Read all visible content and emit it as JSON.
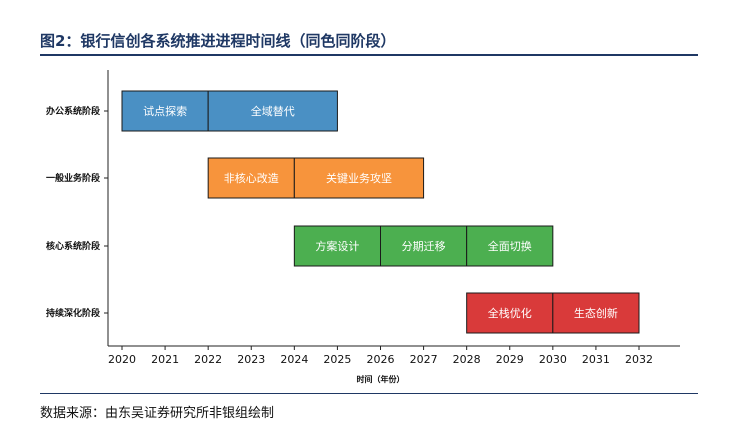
{
  "header": {
    "title": "图2：银行信创各系统推进进程时间线（同色同阶段）"
  },
  "footer": {
    "source": "数据来源：由东吴证券研究所非银组绘制"
  },
  "chart_data": {
    "type": "bar",
    "orientation": "horizontal-gantt",
    "xlabel": "时间（年份）",
    "xlim": [
      2020,
      2032
    ],
    "xticks": [
      2020,
      2021,
      2022,
      2023,
      2024,
      2025,
      2026,
      2027,
      2028,
      2029,
      2030,
      2031,
      2032
    ],
    "grid": false,
    "categories": [
      "办公系统阶段",
      "一般业务阶段",
      "核心系统阶段",
      "持续深化阶段"
    ],
    "phases": [
      {
        "category": "办公系统阶段",
        "color": "#4a90c4",
        "segments": [
          {
            "label": "试点探索",
            "start": 2020,
            "end": 2022
          },
          {
            "label": "全域替代",
            "start": 2022,
            "end": 2025
          }
        ]
      },
      {
        "category": "一般业务阶段",
        "color": "#f7943c",
        "segments": [
          {
            "label": "非核心改造",
            "start": 2022,
            "end": 2024
          },
          {
            "label": "关键业务攻坚",
            "start": 2024,
            "end": 2027
          }
        ]
      },
      {
        "category": "核心系统阶段",
        "color": "#4caf50",
        "segments": [
          {
            "label": "方案设计",
            "start": 2024,
            "end": 2026
          },
          {
            "label": "分期迁移",
            "start": 2026,
            "end": 2028
          },
          {
            "label": "全面切换",
            "start": 2028,
            "end": 2030
          }
        ]
      },
      {
        "category": "持续深化阶段",
        "color": "#d93a3a",
        "segments": [
          {
            "label": "全栈优化",
            "start": 2028,
            "end": 2030
          },
          {
            "label": "生态创新",
            "start": 2030,
            "end": 2032
          }
        ]
      }
    ]
  }
}
